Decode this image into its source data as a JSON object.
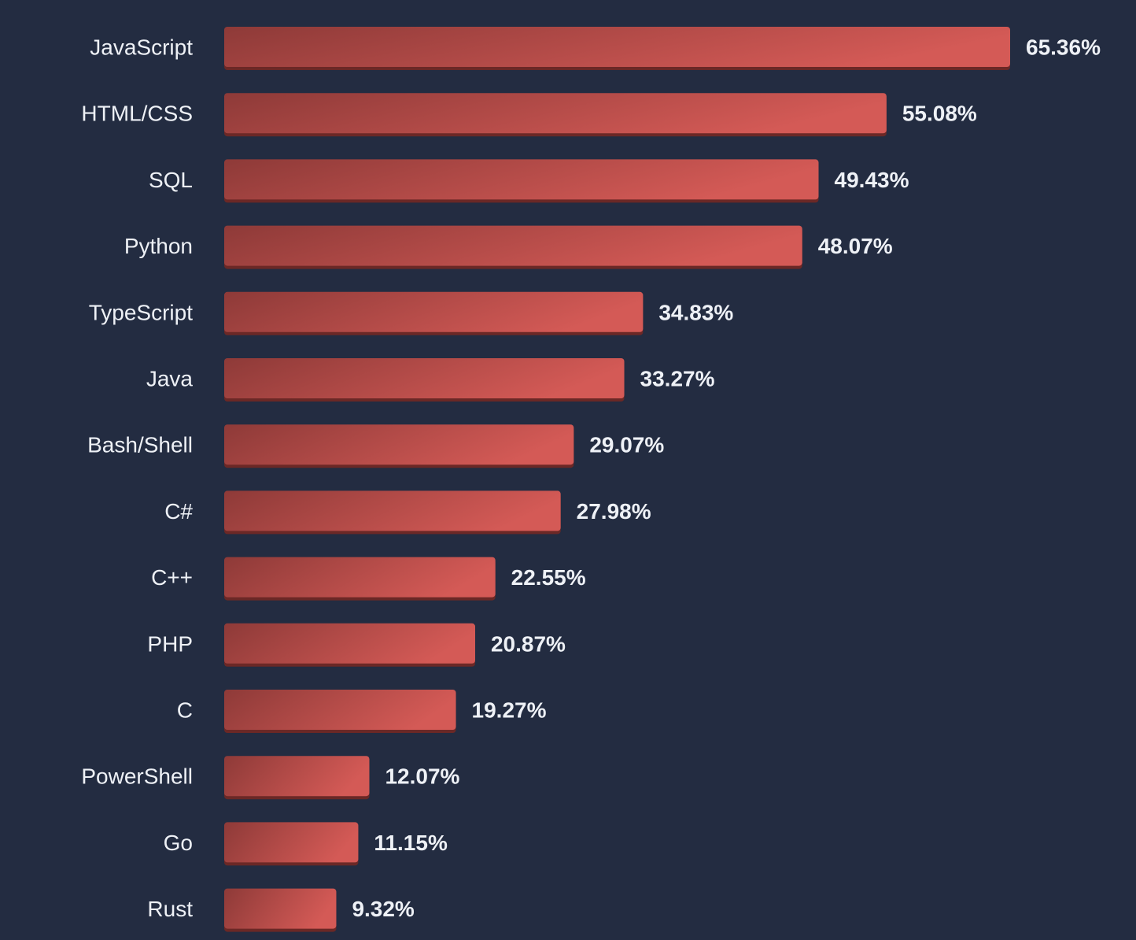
{
  "chart_data": {
    "type": "bar",
    "orientation": "horizontal",
    "title": "",
    "xlabel": "",
    "ylabel": "",
    "categories": [
      "JavaScript",
      "HTML/CSS",
      "SQL",
      "Python",
      "TypeScript",
      "Java",
      "Bash/Shell",
      "C#",
      "C++",
      "PHP",
      "C",
      "PowerShell",
      "Go",
      "Rust"
    ],
    "values": [
      65.36,
      55.08,
      49.43,
      48.07,
      34.83,
      33.27,
      29.07,
      27.98,
      22.55,
      20.87,
      19.27,
      12.07,
      11.15,
      9.32
    ],
    "value_labels": [
      "65.36%",
      "55.08%",
      "49.43%",
      "48.07%",
      "34.83%",
      "33.27%",
      "29.07%",
      "27.98%",
      "22.55%",
      "20.87%",
      "19.27%",
      "12.07%",
      "11.15%",
      "9.32%"
    ],
    "xlim": [
      0,
      65.36
    ],
    "grid": false,
    "legend": "none",
    "colors": {
      "background": "#232c41",
      "bar_dark": "#8e3a38",
      "bar_light": "#d45a56",
      "bar_shadow": "#6b2826",
      "text": "#eef1f6"
    }
  }
}
